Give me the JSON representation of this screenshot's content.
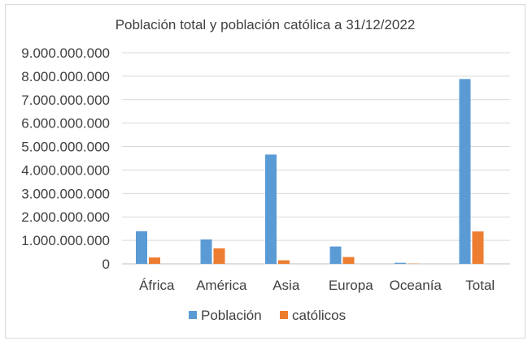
{
  "chart_data": {
    "type": "bar",
    "title": "Población total y población católica a 31/12/2022",
    "xlabel": "",
    "ylabel": "",
    "categories": [
      "África",
      "América",
      "Asia",
      "Europa",
      "Oceanía",
      "Total"
    ],
    "series": [
      {
        "name": "Población",
        "color": "#5b9bd5",
        "values": [
          1390000000,
          1040000000,
          4660000000,
          740000000,
          45000000,
          7880000000
        ]
      },
      {
        "name": "católicos",
        "color": "#ed7d31",
        "values": [
          270000000,
          660000000,
          150000000,
          290000000,
          11000000,
          1380000000
        ]
      }
    ],
    "ylim": [
      0,
      9000000000
    ],
    "y_ticks": [
      "0",
      "1.000.000.000",
      "2.000.000.000",
      "3.000.000.000",
      "4.000.000.000",
      "5.000.000.000",
      "6.000.000.000",
      "7.000.000.000",
      "8.000.000.000",
      "9.000.000.000"
    ],
    "grid": true,
    "legend_position": "bottom"
  }
}
